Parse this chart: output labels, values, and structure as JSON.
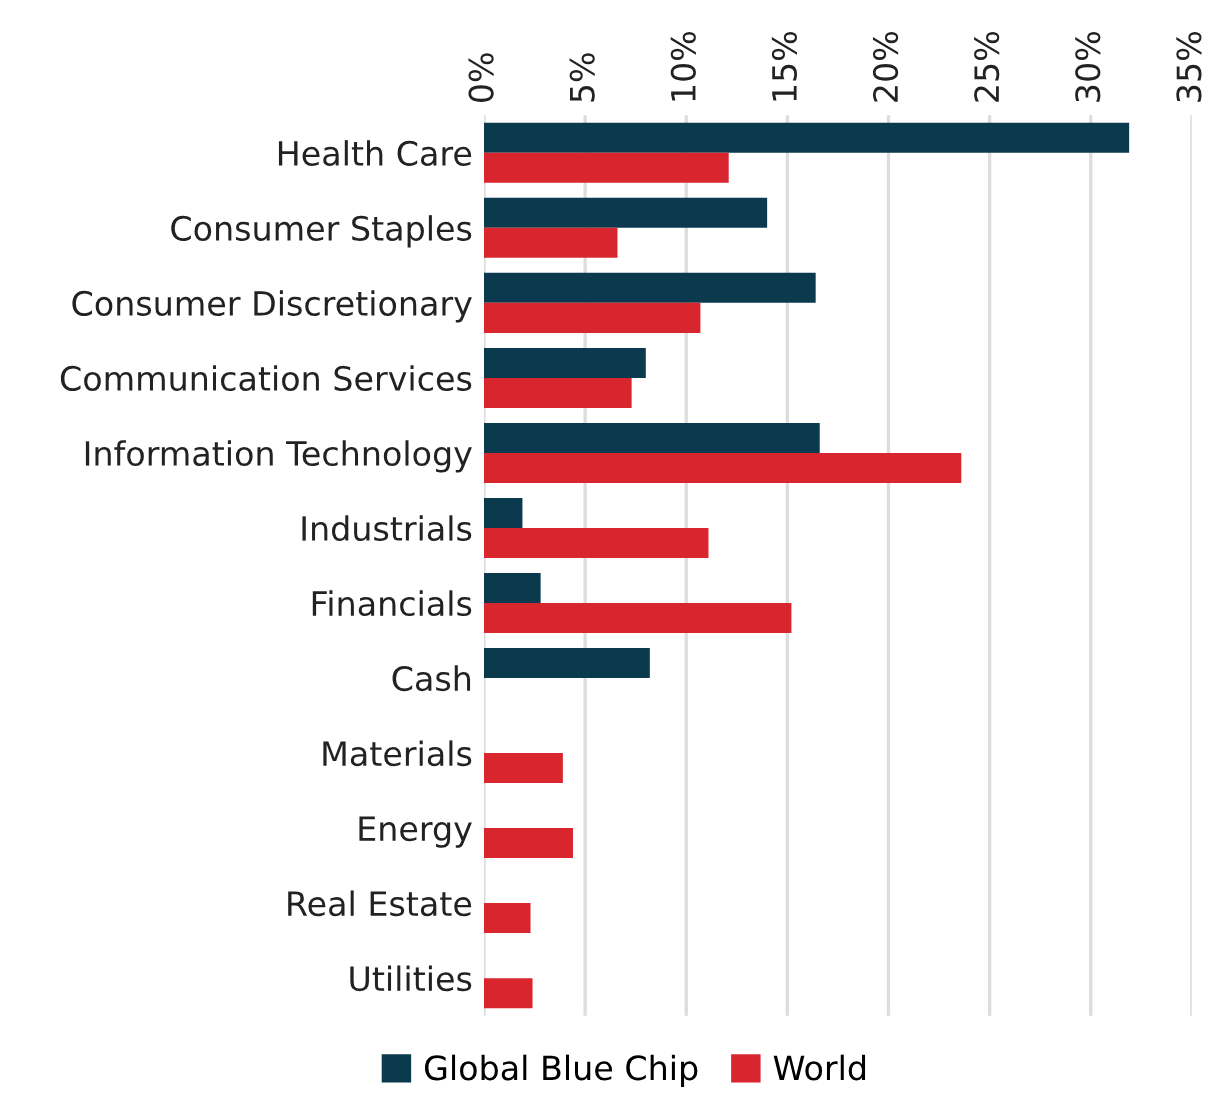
{
  "chart_data": {
    "type": "bar",
    "orientation": "horizontal",
    "categories": [
      "Health Care",
      "Consumer Staples",
      "Consumer Discretionary",
      "Communication Services",
      "Information Technology",
      "Industrials",
      "Financials",
      "Cash",
      "Materials",
      "Energy",
      "Real Estate",
      "Utilities"
    ],
    "series": [
      {
        "name": "Global Blue Chip",
        "color": "#0b3a4f",
        "values": [
          31.9,
          14.0,
          16.4,
          8.0,
          16.6,
          1.9,
          2.8,
          8.2,
          null,
          null,
          null,
          null
        ]
      },
      {
        "name": "World",
        "color": "#d9262e",
        "values": [
          12.1,
          6.6,
          10.7,
          7.3,
          23.6,
          11.1,
          15.2,
          null,
          3.9,
          4.4,
          2.3,
          2.4
        ]
      }
    ],
    "xlim": [
      0,
      35
    ],
    "xticks": [
      {
        "value": 0,
        "label": "0%"
      },
      {
        "value": 5,
        "label": "5%"
      },
      {
        "value": 10,
        "label": "10%"
      },
      {
        "value": 15,
        "label": "15%"
      },
      {
        "value": 20,
        "label": "20%"
      },
      {
        "value": 25,
        "label": "25%"
      },
      {
        "value": 30,
        "label": "30%"
      },
      {
        "value": 35,
        "label": "35%"
      }
    ],
    "grid": "x",
    "legend": "bottom"
  }
}
